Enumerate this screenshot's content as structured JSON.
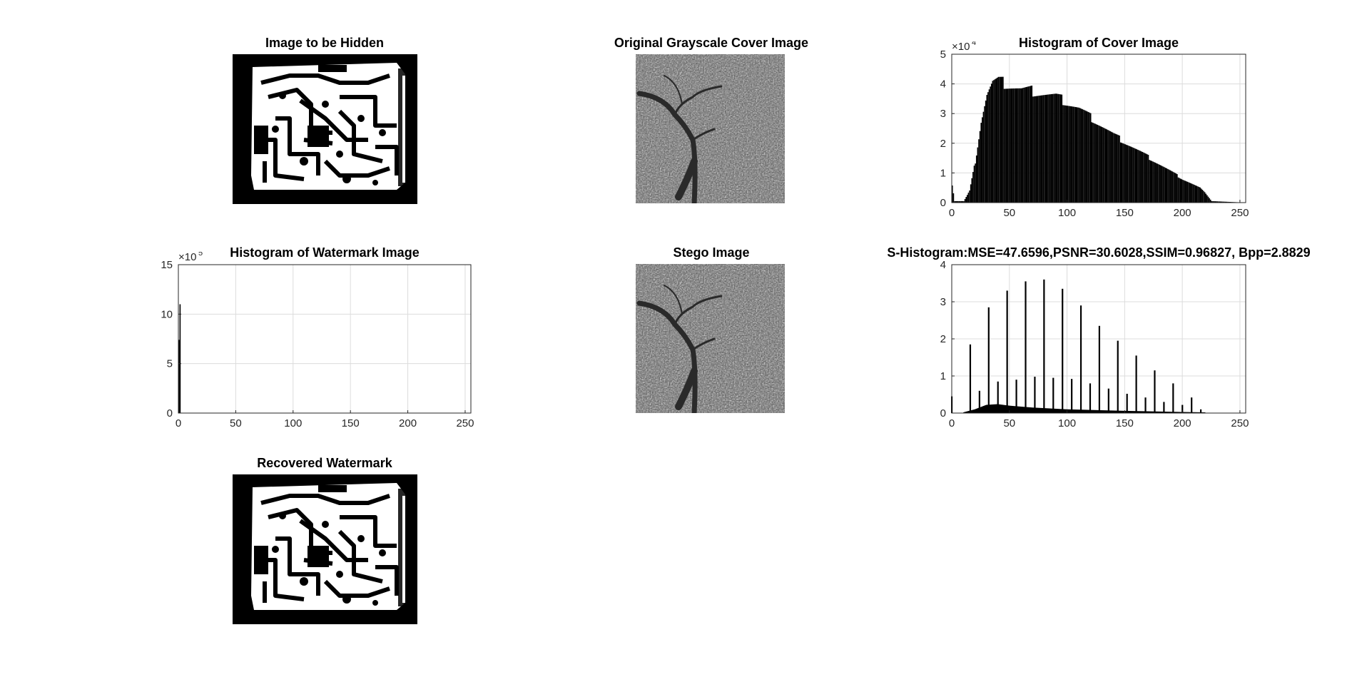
{
  "panels": {
    "hidden": {
      "title": "Image to be Hidden"
    },
    "cover": {
      "title": "Original Grayscale Cover Image"
    },
    "hist_cover": {
      "title": "Histogram of Cover Image"
    },
    "hist_wm": {
      "title": "Histogram of Watermark Image"
    },
    "stego": {
      "title": "Stego Image"
    },
    "s_hist": {
      "title": "S-Histogram:MSE=47.6596,PSNR=30.6028,SSIM=0.96827, Bpp=2.8829"
    },
    "recovered": {
      "title": "Recovered Watermark"
    }
  },
  "chart_data": [
    {
      "id": "hist_cover",
      "type": "bar",
      "title": "Histogram of Cover Image",
      "xlim": [
        0,
        255
      ],
      "ylim": [
        0,
        5
      ],
      "y_multiplier": "×10^4",
      "xticks": [
        0,
        50,
        100,
        150,
        200,
        250
      ],
      "yticks": [
        0,
        1,
        2,
        3,
        4,
        5
      ],
      "grid": true,
      "shape_points": [
        [
          0,
          0.6
        ],
        [
          2,
          0.05
        ],
        [
          10,
          0.05
        ],
        [
          15,
          0.4
        ],
        [
          20,
          1.4
        ],
        [
          25,
          2.8
        ],
        [
          30,
          3.7
        ],
        [
          35,
          4.1
        ],
        [
          40,
          4.15
        ],
        [
          50,
          4.0
        ],
        [
          60,
          3.85
        ],
        [
          70,
          3.8
        ],
        [
          80,
          3.7
        ],
        [
          90,
          3.6
        ],
        [
          100,
          3.4
        ],
        [
          110,
          3.2
        ],
        [
          120,
          2.9
        ],
        [
          130,
          2.6
        ],
        [
          140,
          2.3
        ],
        [
          150,
          2.05
        ],
        [
          160,
          1.8
        ],
        [
          170,
          1.55
        ],
        [
          180,
          1.3
        ],
        [
          190,
          1.05
        ],
        [
          200,
          0.8
        ],
        [
          210,
          0.6
        ],
        [
          215,
          0.5
        ],
        [
          220,
          0.3
        ],
        [
          225,
          0.05
        ],
        [
          255,
          0
        ]
      ]
    },
    {
      "id": "hist_wm",
      "type": "bar",
      "title": "Histogram of Watermark Image",
      "xlim": [
        0,
        255
      ],
      "ylim": [
        0,
        15
      ],
      "y_multiplier": "×10^5",
      "xticks": [
        0,
        50,
        100,
        150,
        200,
        250
      ],
      "yticks": [
        0,
        5,
        10,
        15
      ],
      "grid": true,
      "bars": [
        {
          "x": 0,
          "y": 7.4
        },
        {
          "x": 1,
          "y": 11.0
        }
      ]
    },
    {
      "id": "s_hist",
      "type": "bar",
      "title": "S-Histogram:MSE=47.6596,PSNR=30.6028,SSIM=0.96827, Bpp=2.8829",
      "xlim": [
        0,
        255
      ],
      "ylim": [
        0,
        4
      ],
      "xticks": [
        0,
        50,
        100,
        150,
        200,
        250
      ],
      "yticks": [
        0,
        1,
        2,
        3,
        4
      ],
      "grid": true,
      "spikes": [
        [
          0,
          0.45
        ],
        [
          16,
          1.85
        ],
        [
          24,
          0.6
        ],
        [
          32,
          2.85
        ],
        [
          40,
          0.85
        ],
        [
          48,
          3.3
        ],
        [
          56,
          0.9
        ],
        [
          64,
          3.55
        ],
        [
          72,
          0.98
        ],
        [
          80,
          3.6
        ],
        [
          88,
          0.95
        ],
        [
          96,
          3.35
        ],
        [
          104,
          0.92
        ],
        [
          112,
          2.9
        ],
        [
          120,
          0.8
        ],
        [
          128,
          2.35
        ],
        [
          136,
          0.66
        ],
        [
          144,
          1.95
        ],
        [
          152,
          0.52
        ],
        [
          160,
          1.55
        ],
        [
          168,
          0.42
        ],
        [
          176,
          1.15
        ],
        [
          184,
          0.3
        ],
        [
          192,
          0.8
        ],
        [
          200,
          0.22
        ],
        [
          208,
          0.42
        ],
        [
          216,
          0.1
        ]
      ],
      "base_points": [
        [
          10,
          0.02
        ],
        [
          20,
          0.1
        ],
        [
          30,
          0.22
        ],
        [
          40,
          0.24
        ],
        [
          50,
          0.2
        ],
        [
          70,
          0.15
        ],
        [
          100,
          0.1
        ],
        [
          150,
          0.06
        ],
        [
          200,
          0.03
        ],
        [
          220,
          0.02
        ]
      ]
    }
  ]
}
